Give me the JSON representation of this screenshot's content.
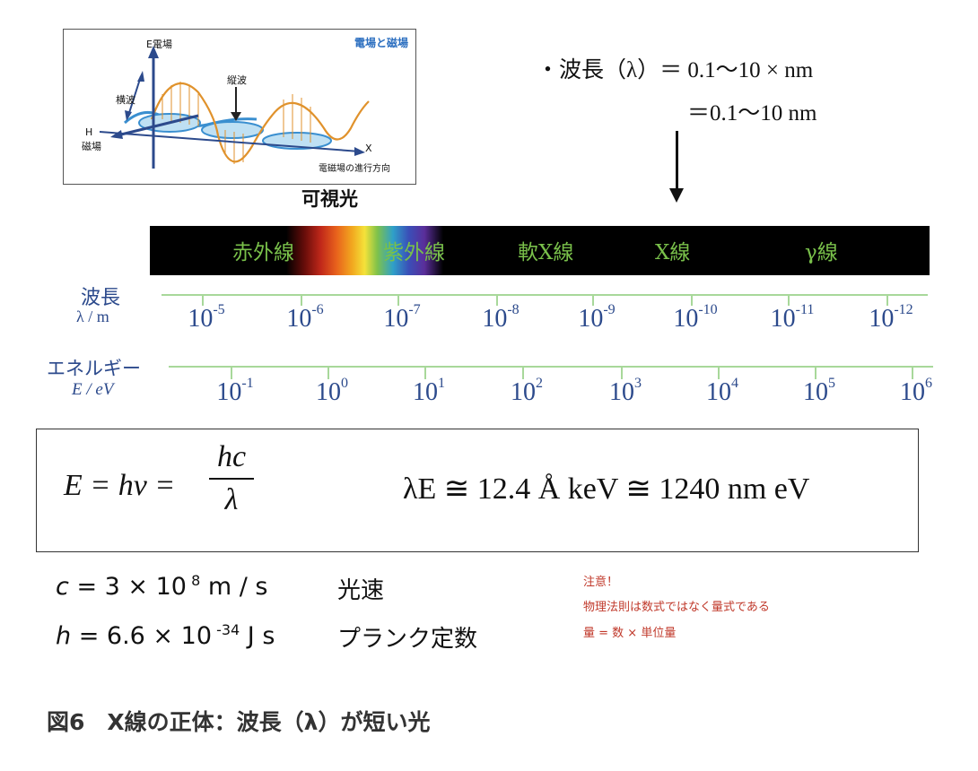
{
  "inset": {
    "title": "電場と磁場",
    "e_axis": "E電場",
    "h_axis_top": "H",
    "h_axis_bottom": "磁場",
    "transverse": "横波",
    "longitudinal": "縦波",
    "x_axis": "X",
    "direction": "電磁場の進行方向"
  },
  "visible_label": "可視光",
  "wavelength_note": {
    "line1": "・波長（λ）＝ 0.1〜10 × nm",
    "line2": "＝0.1〜10 nm"
  },
  "spectrum": {
    "bands": [
      "赤外線",
      "紫外線",
      "軟X線",
      "X線",
      "γ線"
    ],
    "band_color": "#79c04a"
  },
  "wavelength_axis": {
    "label1": "波長",
    "label2": "λ / m",
    "ticks": [
      {
        "base": "10",
        "exp": "-5"
      },
      {
        "base": "10",
        "exp": "-6"
      },
      {
        "base": "10",
        "exp": "-7"
      },
      {
        "base": "10",
        "exp": "-8"
      },
      {
        "base": "10",
        "exp": "-9"
      },
      {
        "base": "10",
        "exp": "-10"
      },
      {
        "base": "10",
        "exp": "-11"
      },
      {
        "base": "10",
        "exp": "-12"
      }
    ]
  },
  "energy_axis": {
    "label1": "エネルギー",
    "label2": "E / eV",
    "ticks": [
      {
        "base": "10",
        "exp": "-1"
      },
      {
        "base": "10",
        "exp": "0"
      },
      {
        "base": "10",
        "exp": "1"
      },
      {
        "base": "10",
        "exp": "2"
      },
      {
        "base": "10",
        "exp": "3"
      },
      {
        "base": "10",
        "exp": "4"
      },
      {
        "base": "10",
        "exp": "5"
      },
      {
        "base": "10",
        "exp": "6"
      }
    ]
  },
  "formula": {
    "lhs": "E = hν =",
    "num": "hc",
    "den": "λ",
    "rhs": "λE ≅ 12.4 Å keV ≅ 1240 nm eV"
  },
  "constants": [
    {
      "sym": "c",
      "val": " = 3 × 10",
      "exp": " 8",
      "unit": " m / s",
      "name": "光速"
    },
    {
      "sym": "h",
      "val": " = 6.6 × 10",
      "exp": " -34",
      "unit": " J s",
      "name": "プランク定数"
    }
  ],
  "notes": [
    "注意！",
    "物理法則は数式ではなく量式である",
    "量 = 数 × 単位量"
  ],
  "caption": "図6　X線の正体：波長（λ）が短い光"
}
